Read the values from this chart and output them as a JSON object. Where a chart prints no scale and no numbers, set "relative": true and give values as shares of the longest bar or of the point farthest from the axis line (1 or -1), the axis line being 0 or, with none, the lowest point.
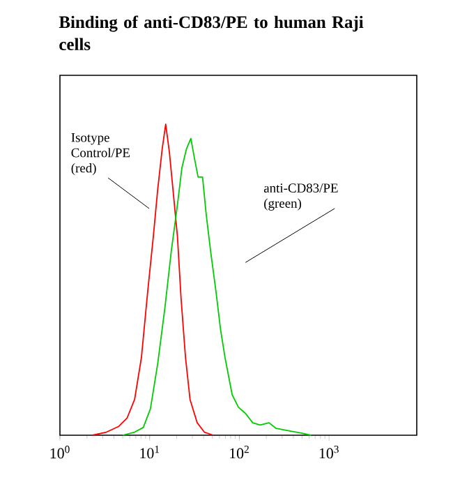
{
  "chart_data": {
    "type": "line",
    "title": "Binding of anti-CD83/PE to human Raji cells",
    "relative": true,
    "log": "x",
    "xlim": [
      1,
      9500
    ],
    "xticks": [
      {
        "value": 1,
        "label": "10$^{0}$"
      },
      {
        "value": 10,
        "label": "10$^{1}$"
      },
      {
        "value": 100,
        "label": "10$^{2}$"
      },
      {
        "value": 1000,
        "label": "10$^{3}$"
      }
    ],
    "tick_labels": "x",
    "grid": false,
    "marker": "none",
    "line_style": "solid",
    "annotations": [
      "Isotype Control/PE (red)",
      "anti-CD83/PE (green)"
    ],
    "series": [
      {
        "color": "#ff0000",
        "x": [
          2.3,
          3.3,
          4.5,
          5.6,
          6.8,
          8.1,
          9.5,
          11,
          12.3,
          13.8,
          15.1,
          16.6,
          18.2,
          20.4,
          22.4,
          25.1,
          28.2,
          33.9,
          40.7,
          51.3
        ],
        "values": [
          0,
          0.01,
          0.028,
          0.055,
          0.115,
          0.25,
          0.46,
          0.64,
          0.79,
          0.92,
          1.0,
          0.91,
          0.79,
          0.64,
          0.44,
          0.25,
          0.115,
          0.04,
          0.01,
          0
        ]
      },
      {
        "color": "#00cc00",
        "x": [
          5.0,
          6.8,
          8.5,
          10.2,
          12.3,
          14.8,
          17.4,
          20.4,
          22.9,
          25.7,
          28.8,
          31.6,
          34.7,
          38.9,
          42.7,
          47.9,
          55,
          61.7,
          69.2,
          83.2,
          97.7,
          117,
          141,
          170,
          214,
          257,
          347,
          490,
          631
        ],
        "values": [
          0,
          0.01,
          0.025,
          0.085,
          0.23,
          0.41,
          0.59,
          0.74,
          0.86,
          0.92,
          0.954,
          0.89,
          0.83,
          0.83,
          0.71,
          0.59,
          0.46,
          0.34,
          0.25,
          0.13,
          0.09,
          0.07,
          0.04,
          0.033,
          0.04,
          0.022,
          0.015,
          0.007,
          0
        ]
      }
    ]
  }
}
